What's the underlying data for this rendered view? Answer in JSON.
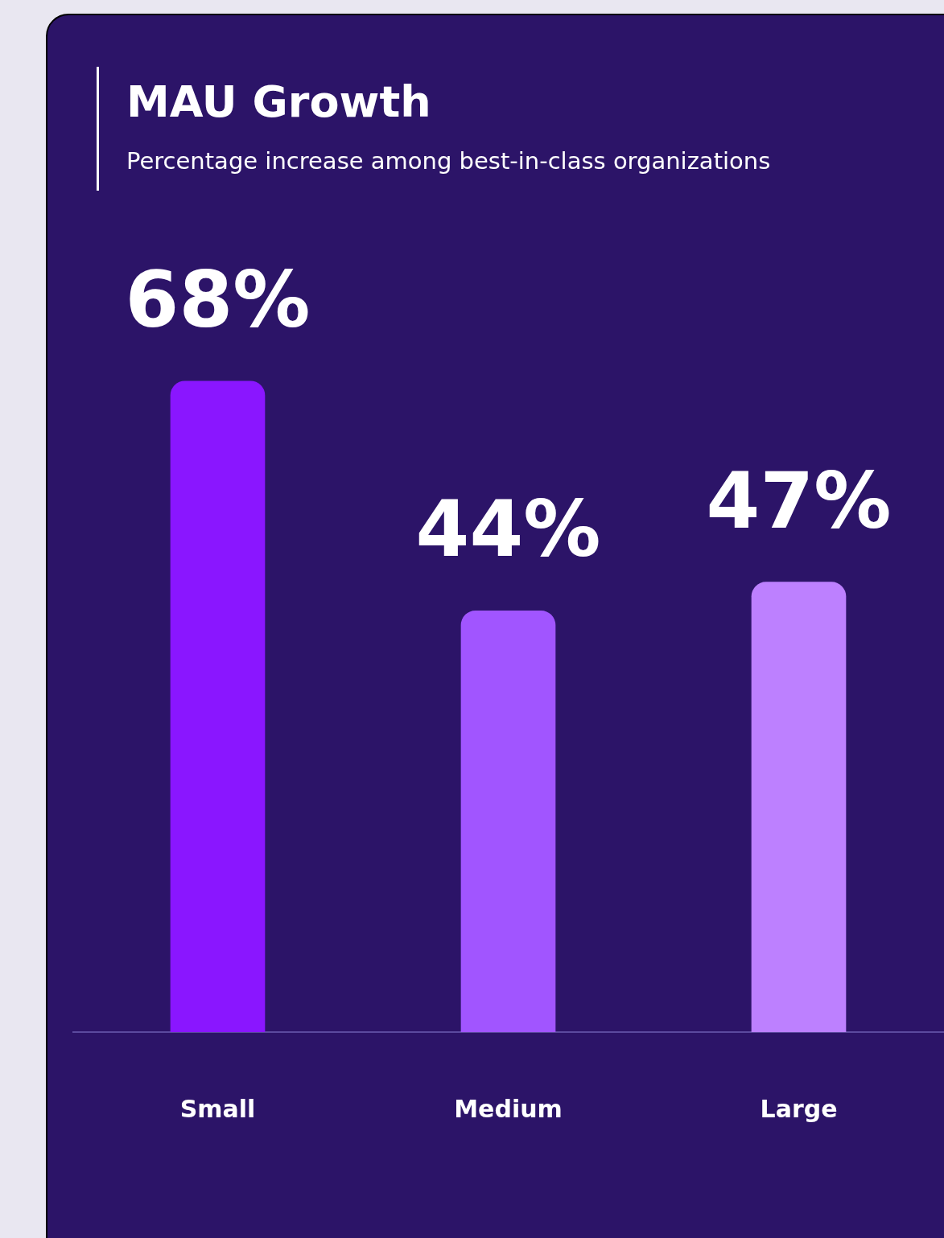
{
  "chart_data": {
    "type": "bar",
    "title": "MAU Growth",
    "subtitle": "Percentage increase among best-in-class organizations",
    "categories": [
      "Small",
      "Medium",
      "Large"
    ],
    "values": [
      68,
      44,
      47
    ],
    "colors": [
      "#8a16ff",
      "#a155ff",
      "#bd80ff"
    ],
    "value_labels": [
      "68%",
      "44%",
      "47%"
    ],
    "grid": false,
    "legend": false
  }
}
